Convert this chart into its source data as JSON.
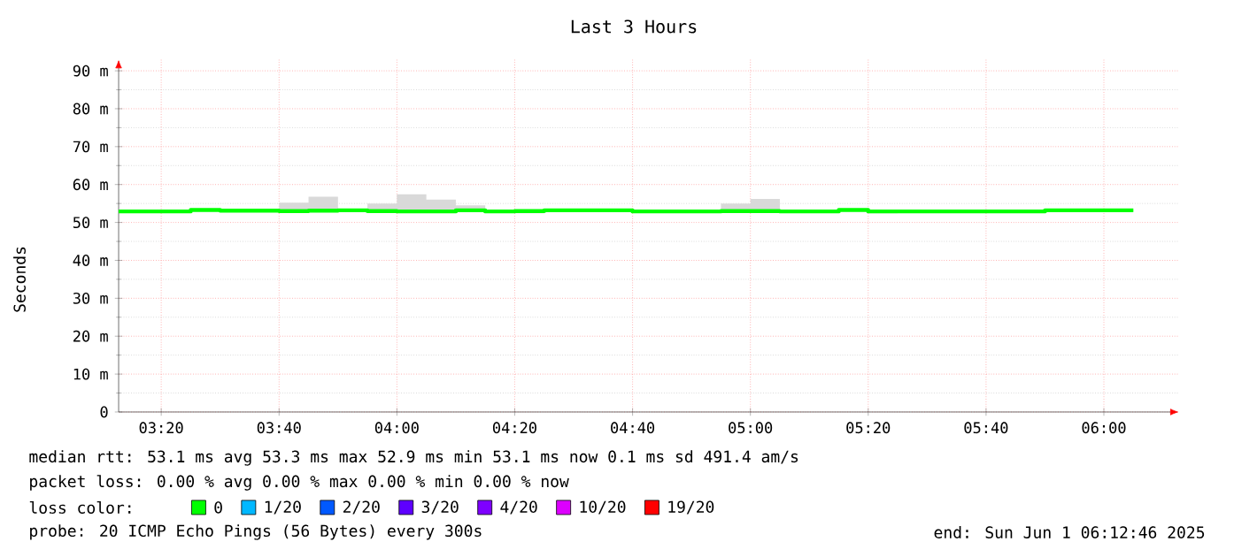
{
  "chart_data": {
    "type": "step",
    "title": "Last 3 Hours",
    "ylabel": "Seconds",
    "legend_title": "loss color:",
    "legend": "bottom",
    "grid": true,
    "marker": "none",
    "xlim": [
      3.2128,
      6.2128
    ],
    "ylim": [
      0,
      93
    ],
    "xticks": [
      {
        "value": 3.3333,
        "label": "03:20"
      },
      {
        "value": 3.6667,
        "label": "03:40"
      },
      {
        "value": 4.0,
        "label": "04:00"
      },
      {
        "value": 4.3333,
        "label": "04:20"
      },
      {
        "value": 4.6667,
        "label": "04:40"
      },
      {
        "value": 5.0,
        "label": "05:00"
      },
      {
        "value": 5.3333,
        "label": "05:20"
      },
      {
        "value": 5.6667,
        "label": "05:40"
      },
      {
        "value": 6.0,
        "label": "06:00"
      }
    ],
    "yticks": [
      0,
      {
        "value": 10,
        "label": "10 m"
      },
      {
        "value": 20,
        "label": "20 m"
      },
      {
        "value": 30,
        "label": "30 m"
      },
      {
        "value": 40,
        "label": "40 m"
      },
      {
        "value": 50,
        "label": "50 m"
      },
      {
        "value": 60,
        "label": "60 m"
      },
      {
        "value": 70,
        "label": "70 m"
      },
      {
        "value": 80,
        "label": "80 m"
      },
      {
        "value": 90,
        "label": "90 m"
      }
    ],
    "x": [
      3.2128,
      3.25,
      3.3333,
      3.4167,
      3.5,
      3.5833,
      3.6667,
      3.75,
      3.8333,
      3.9167,
      4.0,
      4.0833,
      4.1667,
      4.25,
      4.3333,
      4.4167,
      4.5,
      4.5833,
      4.6667,
      4.75,
      4.8333,
      4.9167,
      5.0,
      5.0833,
      5.1667,
      5.25,
      5.3333,
      5.4167,
      5.5,
      5.5833,
      5.6667,
      5.75,
      5.8333,
      5.9167,
      6.0,
      6.0833
    ],
    "series": [
      {
        "name": "0",
        "color": "#00ff00",
        "values": [
          52.9,
          52.9,
          52.9,
          53.3,
          53.1,
          53.1,
          53.0,
          53.1,
          53.2,
          53.0,
          52.9,
          52.9,
          53.2,
          52.9,
          53.0,
          53.2,
          53.2,
          53.2,
          52.9,
          52.9,
          52.9,
          53.0,
          53.0,
          52.9,
          52.9,
          53.3,
          52.9,
          52.9,
          52.9,
          52.9,
          52.9,
          52.9,
          53.2,
          53.2,
          53.2,
          53.2
        ],
        "lower": [
          52.6,
          52.6,
          52.6,
          53.0,
          52.8,
          52.8,
          52.7,
          52.8,
          52.9,
          52.7,
          52.6,
          52.6,
          52.9,
          52.6,
          52.4,
          52.9,
          52.9,
          52.9,
          52.6,
          52.6,
          52.6,
          52.7,
          52.7,
          52.6,
          52.6,
          53.0,
          52.4,
          52.6,
          52.6,
          52.6,
          52.6,
          52.6,
          52.9,
          52.9,
          52.9,
          52.9
        ],
        "upper": [
          53.2,
          53.2,
          53.2,
          53.6,
          53.4,
          53.4,
          55.2,
          56.8,
          53.5,
          55.0,
          57.4,
          56.0,
          54.5,
          53.2,
          53.3,
          53.5,
          53.5,
          53.5,
          53.2,
          53.2,
          53.2,
          55.0,
          56.2,
          53.2,
          53.2,
          53.6,
          53.2,
          53.2,
          53.2,
          53.2,
          53.2,
          53.2,
          53.5,
          53.5,
          53.5,
          53.5
        ]
      },
      {
        "name": "1/20",
        "color": "#00b8ff",
        "values": [
          null,
          null,
          null,
          null,
          null,
          null,
          null,
          null,
          null,
          null,
          null,
          null,
          null,
          null,
          null,
          null,
          null,
          null,
          null,
          null,
          null,
          null,
          null,
          null,
          null,
          null,
          null,
          null,
          null,
          null,
          null,
          null,
          null,
          null,
          null,
          null
        ]
      },
      {
        "name": "2/20",
        "color": "#0059ff",
        "values": [
          null,
          null,
          null,
          null,
          null,
          null,
          null,
          null,
          null,
          null,
          null,
          null,
          null,
          null,
          null,
          null,
          null,
          null,
          null,
          null,
          null,
          null,
          null,
          null,
          null,
          null,
          null,
          null,
          null,
          null,
          null,
          null,
          null,
          null,
          null,
          null
        ]
      },
      {
        "name": "3/20",
        "color": "#5e00ff",
        "values": [
          null,
          null,
          null,
          null,
          null,
          null,
          null,
          null,
          null,
          null,
          null,
          null,
          null,
          null,
          null,
          null,
          null,
          null,
          null,
          null,
          null,
          null,
          null,
          null,
          null,
          null,
          null,
          null,
          null,
          null,
          null,
          null,
          null,
          null,
          null,
          null
        ]
      },
      {
        "name": "4/20",
        "color": "#7e00ff",
        "values": [
          null,
          null,
          null,
          null,
          null,
          null,
          null,
          null,
          null,
          null,
          null,
          null,
          null,
          null,
          null,
          null,
          null,
          null,
          null,
          null,
          null,
          null,
          null,
          null,
          null,
          null,
          null,
          null,
          null,
          null,
          null,
          null,
          null,
          null,
          null,
          null
        ]
      },
      {
        "name": "10/20",
        "color": "#dd00ff",
        "values": [
          null,
          null,
          null,
          null,
          null,
          null,
          null,
          null,
          null,
          null,
          null,
          null,
          null,
          null,
          null,
          null,
          null,
          null,
          null,
          null,
          null,
          null,
          null,
          null,
          null,
          null,
          null,
          null,
          null,
          null,
          null,
          null,
          null,
          null,
          null,
          null
        ]
      },
      {
        "name": "19/20",
        "color": "#ff0000",
        "values": [
          null,
          null,
          null,
          null,
          null,
          null,
          null,
          null,
          null,
          null,
          null,
          null,
          null,
          null,
          null,
          null,
          null,
          null,
          null,
          null,
          null,
          null,
          null,
          null,
          null,
          null,
          null,
          null,
          null,
          null,
          null,
          null,
          null,
          null,
          null,
          null
        ]
      }
    ],
    "annotations": [
      "median rtt: 53.1 ms avg 53.3 ms max 52.9 ms min 53.1 ms now 0.1 ms sd 491.4 am/s",
      "packet loss: 0.00 % avg 0.00 % max 0.00 % min 0.00 % now",
      "probe: 20 ICMP Echo Pings (56 Bytes) every 300s",
      "end: Sun Jun 1 06:12:46 2025"
    ]
  }
}
